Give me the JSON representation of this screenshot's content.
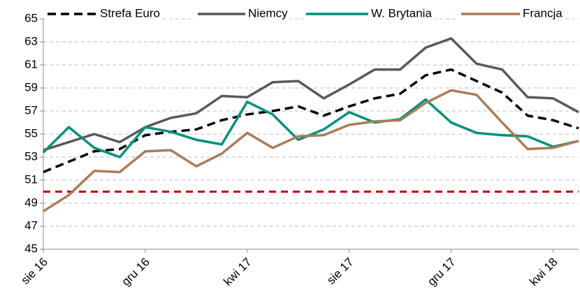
{
  "chart_data": {
    "type": "line",
    "categories": [
      "sie 16",
      null,
      null,
      null,
      "gru 16",
      null,
      null,
      null,
      "kwi 17",
      null,
      null,
      null,
      "sie 17",
      null,
      null,
      null,
      "gru 17",
      null,
      null,
      null,
      "kwi 18",
      null
    ],
    "series": [
      {
        "name": "Strefa Euro",
        "color": "#000000",
        "style": "dashed",
        "values": [
          51.7,
          52.6,
          53.5,
          53.7,
          54.9,
          55.2,
          55.4,
          56.2,
          56.7,
          57.0,
          57.4,
          56.6,
          57.4,
          58.1,
          58.5,
          60.1,
          60.6,
          59.6,
          58.6,
          56.6,
          56.2,
          55.5
        ]
      },
      {
        "name": "Niemcy",
        "color": "#595959",
        "style": "solid",
        "values": [
          53.6,
          54.3,
          55.0,
          54.3,
          55.6,
          56.4,
          56.8,
          58.3,
          58.2,
          59.5,
          59.6,
          58.1,
          59.3,
          60.6,
          60.6,
          62.5,
          63.3,
          61.1,
          60.6,
          58.2,
          58.1,
          56.9
        ]
      },
      {
        "name": "W. Brytania",
        "color": "#00907a",
        "style": "solid",
        "values": [
          53.4,
          55.6,
          53.8,
          53.0,
          55.6,
          55.2,
          54.5,
          54.1,
          57.8,
          56.7,
          54.5,
          55.4,
          56.9,
          56.0,
          56.3,
          58.0,
          56.0,
          55.1,
          54.9,
          54.8,
          53.9,
          54.4
        ]
      },
      {
        "name": "Francja",
        "color": "#a97c5a",
        "style": "solid",
        "values": [
          48.3,
          49.7,
          51.8,
          51.7,
          53.5,
          53.6,
          52.2,
          53.3,
          55.1,
          53.8,
          54.8,
          54.9,
          55.8,
          56.1,
          56.2,
          57.7,
          58.8,
          58.4,
          56.0,
          53.7,
          53.8,
          54.4
        ]
      }
    ],
    "reference_line": {
      "value": 50,
      "color": "#c00000"
    },
    "ylim": [
      45,
      65
    ],
    "yticks": [
      45,
      47,
      49,
      51,
      53,
      55,
      57,
      59,
      61,
      63,
      65
    ],
    "grid": true
  }
}
